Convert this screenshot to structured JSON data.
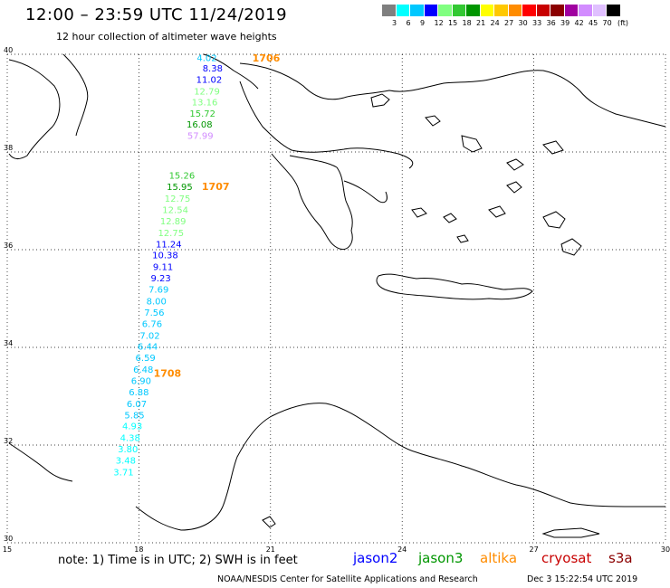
{
  "header": {
    "title": "12:00 – 23:59 UTC 11/24/2019",
    "subtitle": "12 hour collection of altimeter wave heights"
  },
  "legend": {
    "unit": "(ft)",
    "labels": [
      "3",
      "6",
      "9",
      "12",
      "15",
      "18",
      "21",
      "24",
      "27",
      "30",
      "33",
      "36",
      "39",
      "42",
      "45",
      "70"
    ],
    "colors": [
      "#7f7f7f",
      "#00ffff",
      "#00c8ff",
      "#0000ff",
      "#80ff80",
      "#32c832",
      "#009600",
      "#ffff00",
      "#ffc800",
      "#ff8c00",
      "#ff0000",
      "#c80000",
      "#8b0000",
      "#a000a0",
      "#d28cff",
      "#e0c0ff",
      "#000000"
    ]
  },
  "map": {
    "lat_ticks": [
      "40",
      "38",
      "36",
      "34",
      "32",
      "30"
    ],
    "lon_ticks": [
      "15",
      "18",
      "21",
      "24",
      "27",
      "30"
    ],
    "lon_range": [
      15,
      30
    ],
    "lat_range": [
      30,
      40
    ],
    "time_labels": [
      {
        "text": "1706",
        "lon": 20.9,
        "lat": 39.85
      },
      {
        "text": "1707",
        "lon": 19.75,
        "lat": 37.22
      },
      {
        "text": "1708",
        "lon": 18.65,
        "lat": 33.4
      }
    ],
    "wave_heights": [
      {
        "v": "4.02",
        "lon": 19.55,
        "lat": 39.86,
        "c": "#00c8ff"
      },
      {
        "v": "8.38",
        "lon": 19.68,
        "lat": 39.65,
        "c": "#0000ff"
      },
      {
        "v": "11.02",
        "lon": 19.6,
        "lat": 39.42,
        "c": "#0000ff"
      },
      {
        "v": "12.79",
        "lon": 19.55,
        "lat": 39.18,
        "c": "#80ff80"
      },
      {
        "v": "13.16",
        "lon": 19.5,
        "lat": 38.95,
        "c": "#80ff80"
      },
      {
        "v": "15.72",
        "lon": 19.45,
        "lat": 38.72,
        "c": "#32c832"
      },
      {
        "v": "16.08",
        "lon": 19.38,
        "lat": 38.5,
        "c": "#009600"
      },
      {
        "v": "57.99",
        "lon": 19.4,
        "lat": 38.27,
        "c": "#d28cff"
      },
      {
        "v": "15.26",
        "lon": 18.98,
        "lat": 37.45,
        "c": "#32c832"
      },
      {
        "v": "15.95",
        "lon": 18.93,
        "lat": 37.22,
        "c": "#009600"
      },
      {
        "v": "12.75",
        "lon": 18.88,
        "lat": 36.98,
        "c": "#80ff80"
      },
      {
        "v": "12.54",
        "lon": 18.83,
        "lat": 36.75,
        "c": "#80ff80"
      },
      {
        "v": "12.89",
        "lon": 18.78,
        "lat": 36.52,
        "c": "#80ff80"
      },
      {
        "v": "12.75",
        "lon": 18.73,
        "lat": 36.28,
        "c": "#80ff80"
      },
      {
        "v": "11.24",
        "lon": 18.68,
        "lat": 36.05,
        "c": "#0000ff"
      },
      {
        "v": "10.38",
        "lon": 18.6,
        "lat": 35.82,
        "c": "#0000ff"
      },
      {
        "v": "9.11",
        "lon": 18.55,
        "lat": 35.58,
        "c": "#0000ff"
      },
      {
        "v": "9.23",
        "lon": 18.5,
        "lat": 35.35,
        "c": "#0000ff"
      },
      {
        "v": "7.69",
        "lon": 18.45,
        "lat": 35.12,
        "c": "#00c8ff"
      },
      {
        "v": "8.00",
        "lon": 18.4,
        "lat": 34.88,
        "c": "#00c8ff"
      },
      {
        "v": "7.56",
        "lon": 18.35,
        "lat": 34.65,
        "c": "#00c8ff"
      },
      {
        "v": "6.76",
        "lon": 18.3,
        "lat": 34.42,
        "c": "#00c8ff"
      },
      {
        "v": "7.02",
        "lon": 18.25,
        "lat": 34.18,
        "c": "#00c8ff"
      },
      {
        "v": "6.44",
        "lon": 18.2,
        "lat": 33.95,
        "c": "#00c8ff"
      },
      {
        "v": "6.59",
        "lon": 18.15,
        "lat": 33.72,
        "c": "#00c8ff"
      },
      {
        "v": "6.48",
        "lon": 18.1,
        "lat": 33.48,
        "c": "#00c8ff"
      },
      {
        "v": "6.90",
        "lon": 18.05,
        "lat": 33.25,
        "c": "#00c8ff"
      },
      {
        "v": "6.88",
        "lon": 18.0,
        "lat": 33.02,
        "c": "#00c8ff"
      },
      {
        "v": "6.07",
        "lon": 17.95,
        "lat": 32.78,
        "c": "#00c8ff"
      },
      {
        "v": "5.85",
        "lon": 17.9,
        "lat": 32.55,
        "c": "#00c8ff"
      },
      {
        "v": "4.93",
        "lon": 17.85,
        "lat": 32.32,
        "c": "#00ffff"
      },
      {
        "v": "4.38",
        "lon": 17.8,
        "lat": 32.08,
        "c": "#00ffff"
      },
      {
        "v": "3.80",
        "lon": 17.75,
        "lat": 31.85,
        "c": "#00ffff"
      },
      {
        "v": "3.48",
        "lon": 17.7,
        "lat": 31.62,
        "c": "#00ffff"
      },
      {
        "v": "3.71",
        "lon": 17.65,
        "lat": 31.38,
        "c": "#00ffff"
      }
    ]
  },
  "footer": {
    "note": "note: 1) Time is in UTC; 2) SWH is in feet",
    "satellites": [
      {
        "name": "jason2",
        "color": "#0000ff"
      },
      {
        "name": "jason3",
        "color": "#009600"
      },
      {
        "name": "altika",
        "color": "#ff8c00"
      },
      {
        "name": "cryosat",
        "color": "#c80000"
      },
      {
        "name": "s3a",
        "color": "#8b0000"
      }
    ],
    "credit": "NOAA/NESDIS Center for Satellite Applications and Research",
    "timestamp": "Dec  3 15:22:54 UTC 2019"
  }
}
